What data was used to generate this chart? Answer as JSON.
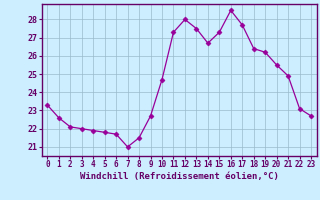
{
  "x": [
    0,
    1,
    2,
    3,
    4,
    5,
    6,
    7,
    8,
    9,
    10,
    11,
    12,
    13,
    14,
    15,
    16,
    17,
    18,
    19,
    20,
    21,
    22,
    23
  ],
  "y": [
    23.3,
    22.6,
    22.1,
    22.0,
    21.9,
    21.8,
    21.7,
    21.0,
    21.5,
    22.7,
    24.7,
    27.3,
    28.0,
    27.5,
    26.7,
    27.3,
    28.5,
    27.7,
    26.4,
    26.2,
    25.5,
    24.9,
    23.1,
    22.7
  ],
  "line_color": "#990099",
  "marker": "D",
  "marker_size": 2.5,
  "bg_color": "#cceeff",
  "grid_color": "#99bbcc",
  "xlabel": "Windchill (Refroidissement éolien,°C)",
  "ylabel_ticks": [
    21,
    22,
    23,
    24,
    25,
    26,
    27,
    28
  ],
  "xlim": [
    -0.5,
    23.5
  ],
  "ylim": [
    20.5,
    28.85
  ],
  "xlabel_color": "#660066",
  "tick_color": "#660066",
  "spine_color": "#660066",
  "tick_fontsize": 5.5,
  "xlabel_fontsize": 6.5
}
